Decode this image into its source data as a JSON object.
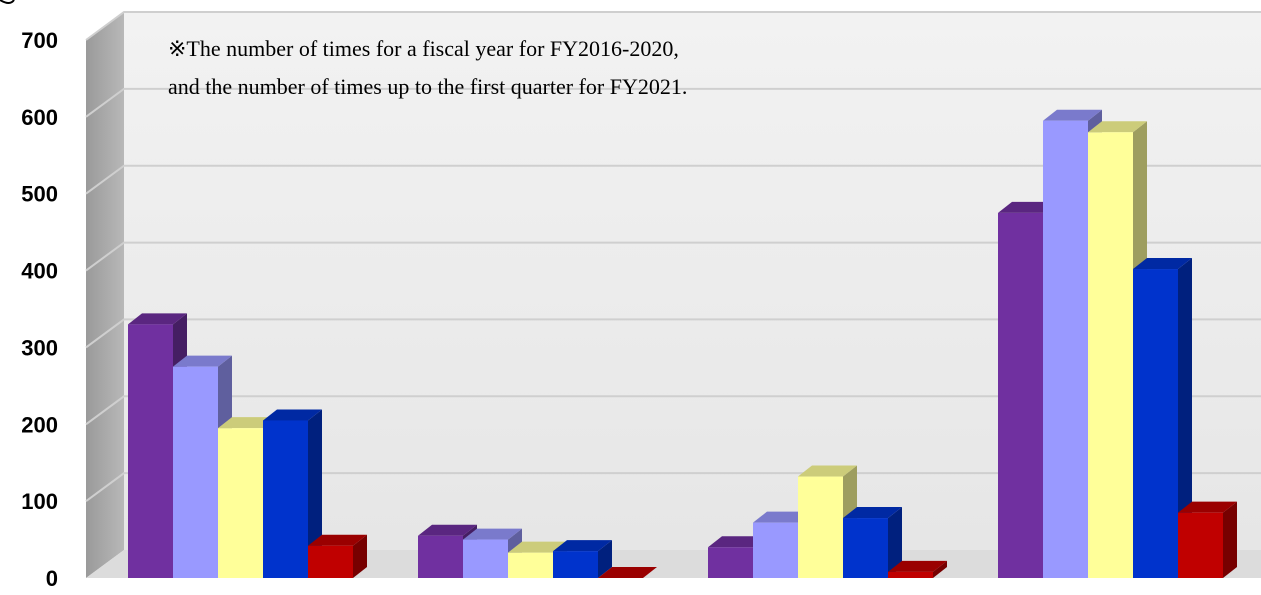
{
  "chart_data": {
    "type": "bar",
    "title": "",
    "xlabel": "",
    "ylabel": "",
    "ylim": [
      0,
      700
    ],
    "yticks": [
      "0",
      "100",
      "200",
      "300",
      "400",
      "500",
      "600",
      "700"
    ],
    "grid": true,
    "annotation_lines": [
      "※The number of times for a fiscal year for FY2016-2020,",
      "and the number of times up to the first quarter for FY2021."
    ],
    "categories": [
      "",
      "",
      "",
      ""
    ],
    "series": [
      {
        "values": [
          330,
          55,
          40,
          475
        ],
        "color": "#7030a0"
      },
      {
        "values": [
          275,
          50,
          72,
          595
        ],
        "color": "#9999ff"
      },
      {
        "values": [
          195,
          33,
          132,
          580
        ],
        "color": "#ffff99"
      },
      {
        "values": [
          205,
          35,
          78,
          402
        ],
        "color": "#0033cc"
      },
      {
        "values": [
          42,
          0,
          8,
          85
        ],
        "color": "#c00000"
      }
    ]
  }
}
